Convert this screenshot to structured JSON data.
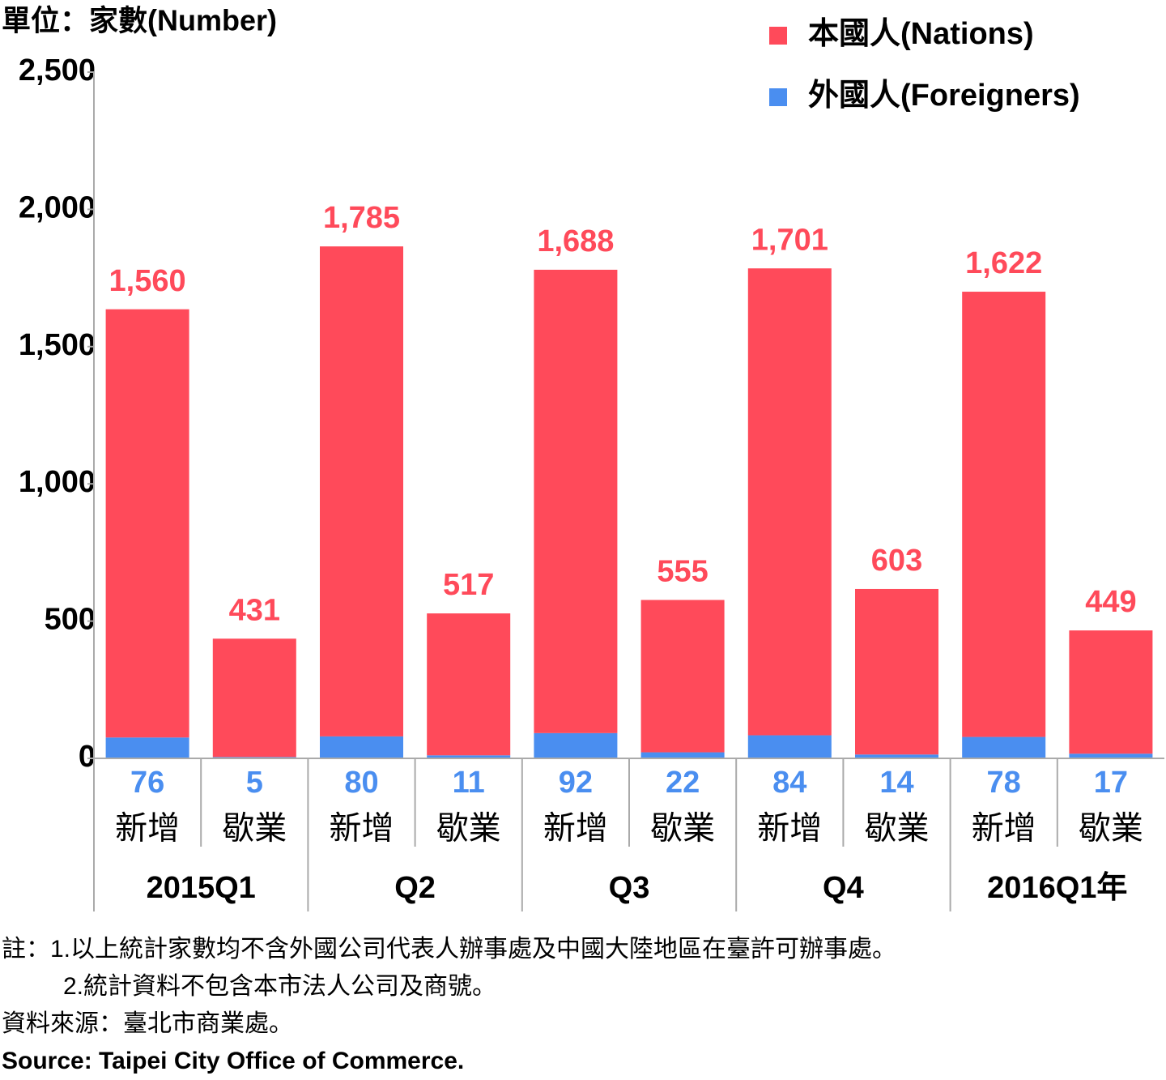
{
  "chart_data": {
    "type": "stacked_bar",
    "unit_label": "單位：家數(Number)",
    "categories": [
      "新增",
      "歇業",
      "新增",
      "歇業",
      "新增",
      "歇業",
      "新增",
      "歇業",
      "新增",
      "歇業"
    ],
    "groups": [
      "2015Q1",
      "Q2",
      "Q3",
      "Q4",
      "2016Q1年"
    ],
    "series": [
      {
        "name": "本國人(Nations)",
        "color": "#ff4a5a",
        "values": [
          1560,
          431,
          1785,
          517,
          1688,
          555,
          1701,
          603,
          1622,
          449
        ],
        "value_labels": [
          "1,560",
          "431",
          "1,785",
          "517",
          "1,688",
          "555",
          "1,701",
          "603",
          "1,622",
          "449"
        ]
      },
      {
        "name": "外國人(Foreigners)",
        "color": "#4a8ef0",
        "values": [
          76,
          5,
          80,
          11,
          92,
          22,
          84,
          14,
          78,
          17
        ]
      }
    ],
    "ylim": [
      0,
      2500
    ],
    "yticks": [
      0,
      500,
      {
        "value": 1000,
        "label": "1,000"
      },
      {
        "value": 1500,
        "label": "1,500"
      },
      {
        "value": 2000,
        "label": "2,000"
      },
      {
        "value": 2500,
        "label": "2,500"
      }
    ],
    "legend": "top-right",
    "notes": [
      "註：1.以上統計家數均不含外國公司代表人辦事處及中國大陸地區在臺許可辦事處。",
      "2.統計資料不包含本市法人公司及商號。"
    ],
    "source_zh": "資料來源：臺北市商業處。",
    "source_en": "Source: Taipei City Office of Commerce."
  }
}
